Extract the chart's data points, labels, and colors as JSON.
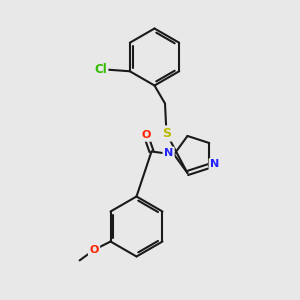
{
  "bg_color": "#e8e8e8",
  "bond_color": "#1a1a1a",
  "atom_colors": {
    "Cl": "#33bb00",
    "S": "#bbbb00",
    "N": "#2222ff",
    "O": "#ff2200",
    "C": "#1a1a1a"
  },
  "bond_lw": 1.5,
  "font_size": 8.0,
  "dpi": 100,
  "xlim": [
    0,
    10
  ],
  "ylim": [
    0,
    10
  ]
}
